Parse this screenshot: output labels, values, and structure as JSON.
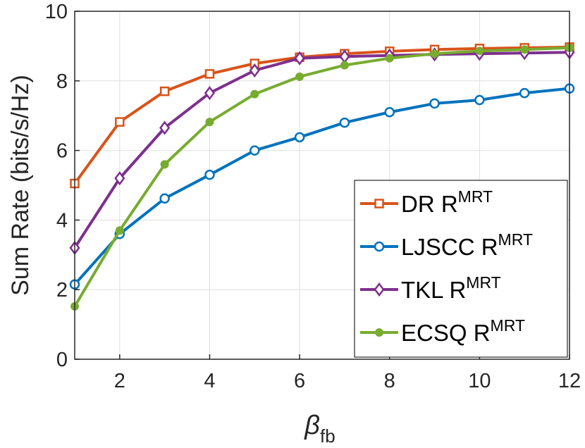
{
  "chart_data": {
    "type": "line",
    "title": "",
    "xlabel": "β",
    "xlabel_sub": "fb",
    "ylabel": "Sum Rate (bits/s/Hz)",
    "xlim": [
      1,
      12
    ],
    "ylim": [
      0,
      10
    ],
    "xticks": [
      2,
      4,
      6,
      8,
      10,
      12
    ],
    "yticks": [
      0,
      2,
      4,
      6,
      8,
      10
    ],
    "grid": true,
    "legend_position": "bottom-right",
    "x": [
      1,
      2,
      3,
      4,
      5,
      6,
      7,
      8,
      9,
      10,
      11,
      12
    ],
    "series": [
      {
        "name": "DR R",
        "sup": "MRT",
        "color": "#D95319",
        "marker": "square",
        "values": [
          5.05,
          6.82,
          7.7,
          8.2,
          8.5,
          8.68,
          8.78,
          8.85,
          8.9,
          8.93,
          8.95,
          8.97
        ]
      },
      {
        "name": "LJSCC R",
        "sup": "MRT",
        "color": "#0072BD",
        "marker": "circle",
        "values": [
          2.15,
          3.6,
          4.62,
          5.3,
          6.0,
          6.38,
          6.8,
          7.1,
          7.35,
          7.45,
          7.65,
          7.78
        ]
      },
      {
        "name": "TKL R",
        "sup": "MRT",
        "color": "#7E2F8E",
        "marker": "diamond",
        "values": [
          3.2,
          5.2,
          6.65,
          7.65,
          8.3,
          8.65,
          8.7,
          8.73,
          8.76,
          8.78,
          8.8,
          8.82
        ]
      },
      {
        "name": "ECSQ R",
        "sup": "MRT",
        "color": "#77AC30",
        "marker": "dot",
        "values": [
          1.52,
          3.7,
          5.6,
          6.82,
          7.62,
          8.12,
          8.45,
          8.65,
          8.78,
          8.86,
          8.9,
          8.95
        ]
      }
    ]
  }
}
